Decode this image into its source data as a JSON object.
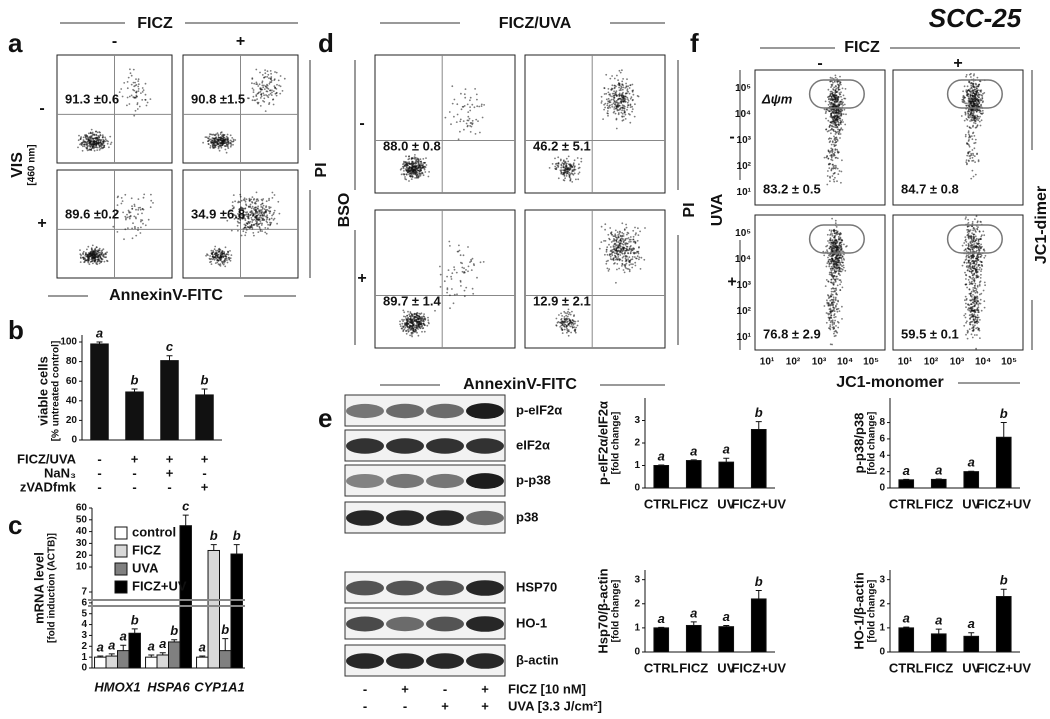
{
  "figure_title": "SCC-25",
  "panel_a": {
    "letter": "a",
    "column_header": "FICZ",
    "column_signs": [
      "-",
      "+"
    ],
    "row_header": "VIS",
    "row_subheader": "[460 nm]",
    "row_signs": [
      "-",
      "+"
    ],
    "x_label": "AnnexinV-FITC",
    "y_label": "PI",
    "quadrant_values": [
      "91.3 ±0.6",
      "90.8 ±1.5",
      "89.6 ±0.2",
      "34.9 ±6.8"
    ]
  },
  "panel_d": {
    "letter": "d",
    "column_header": "FICZ/UVA",
    "column_signs": [
      "-",
      "+"
    ],
    "row_header": "BSO",
    "row_signs": [
      "-",
      "+"
    ],
    "x_label": "AnnexinV-FITC",
    "y_label": "PI",
    "quadrant_values": [
      "88.0 ± 0.8",
      "46.2 ± 5.1",
      "89.7 ± 1.4",
      "12.9 ± 2.1"
    ]
  },
  "panel_f": {
    "letter": "f",
    "column_header": "FICZ",
    "column_signs": [
      "-",
      "+"
    ],
    "row_header": "UVA",
    "row_signs": [
      "-",
      "+"
    ],
    "x_label": "JC1-monomer",
    "y_label": "JC1-dimer",
    "gate_label": "Δψm",
    "axis_ticks": [
      "10¹",
      "10²",
      "10³",
      "10⁴",
      "10⁵"
    ],
    "gate_values": [
      "83.2 ± 0.5",
      "84.7 ± 0.8",
      "76.8 ± 2.9",
      "59.5 ± 0.1"
    ]
  },
  "panel_e": {
    "letter": "e",
    "blot_labels": [
      "p-eIF2α",
      "eIF2α",
      "p-p38",
      "p38",
      "HSP70",
      "HO-1",
      "β-actin"
    ],
    "treatments": [
      {
        "name": "FICZ  [10 nM]",
        "signs": [
          "-",
          "+",
          "-",
          "+"
        ]
      },
      {
        "name": "UVA  [3.3 J/cm²]",
        "signs": [
          "-",
          "-",
          "+",
          "+"
        ]
      }
    ]
  },
  "chart_data": [
    {
      "type": "bar",
      "panel": "b",
      "y_label": "viable cells",
      "y_sublabel": "[% untreated control]",
      "values": [
        98,
        49,
        81,
        46
      ],
      "errors": [
        2,
        3,
        5,
        6
      ],
      "annotations": [
        "a",
        "b",
        "c",
        "b"
      ],
      "color": "#111111",
      "ylim": [
        0,
        100
      ],
      "yticks": [
        0,
        20,
        40,
        60,
        80,
        100
      ],
      "conditions": [
        {
          "name": "FICZ/UVA",
          "signs": [
            "-",
            "+",
            "+",
            "+"
          ]
        },
        {
          "name": "NaN₃",
          "signs": [
            "-",
            "-",
            "+",
            "-"
          ]
        },
        {
          "name": "zVADfmk",
          "signs": [
            "-",
            "-",
            "-",
            "+"
          ]
        }
      ]
    },
    {
      "type": "bar",
      "panel": "c",
      "y_label": "mRNA level",
      "y_sublabel": "[fold induction (ACTB)]",
      "categories": [
        "HMOX1",
        "HSPA6",
        "CYP1A1"
      ],
      "series": [
        {
          "name": "control",
          "color": "#ffffff",
          "values": [
            1.0,
            1.0,
            1.0
          ],
          "errors": [
            0.1,
            0.2,
            0.1
          ],
          "annotations": [
            "a",
            "a",
            "a"
          ]
        },
        {
          "name": "FICZ",
          "color": "#d9d9d9",
          "values": [
            1.1,
            1.2,
            24
          ],
          "errors": [
            0.2,
            0.2,
            5
          ],
          "annotations": [
            "a",
            "a",
            "b"
          ]
        },
        {
          "name": "UVA",
          "color": "#808080",
          "values": [
            1.6,
            2.4,
            1.6
          ],
          "errors": [
            0.5,
            0.2,
            1.1
          ],
          "annotations": [
            "a",
            "b",
            "b"
          ]
        },
        {
          "name": "FICZ+UV",
          "color": "#000000",
          "values": [
            3.2,
            45,
            21
          ],
          "errors": [
            0.4,
            9,
            8
          ],
          "annotations": [
            "b",
            "c",
            "b"
          ]
        }
      ],
      "ylim": [
        0,
        7
      ],
      "yticks": [
        0,
        1,
        2,
        3,
        4,
        5,
        6,
        7
      ],
      "ylim_upper": [
        10,
        60
      ],
      "yticks_upper": [
        10,
        20,
        30,
        40,
        50,
        60
      ],
      "axis_break": true
    },
    {
      "type": "bar",
      "y_label": "p-eIF2α/eIF2α",
      "y_sublabel": "[fold change]",
      "categories": [
        "CTRL",
        "FICZ",
        "UV",
        "FICZ+UV"
      ],
      "values": [
        1.0,
        1.22,
        1.15,
        2.6
      ],
      "errors": [
        0.02,
        0.03,
        0.17,
        0.35
      ],
      "annotations": [
        "a",
        "a",
        "a",
        "b"
      ],
      "color": "#000000",
      "ylim": [
        0,
        4
      ],
      "yticks": [
        0,
        1,
        2,
        3
      ]
    },
    {
      "type": "bar",
      "y_label": "p-p38/p38",
      "y_sublabel": "[fold change]",
      "categories": [
        "CTRL",
        "FICZ",
        "UV",
        "FICZ+UV"
      ],
      "values": [
        1.0,
        1.05,
        2.0,
        6.2
      ],
      "errors": [
        0.05,
        0.05,
        0.05,
        1.8
      ],
      "annotations": [
        "a",
        "a",
        "a",
        "b"
      ],
      "color": "#000000",
      "ylim": [
        0,
        11
      ],
      "yticks": [
        0,
        2,
        4,
        6,
        8
      ]
    },
    {
      "type": "bar",
      "y_label": "Hsp70/β-actin",
      "y_sublabel": "[fold change]",
      "categories": [
        "CTRL",
        "FICZ",
        "UV",
        "FICZ+UV"
      ],
      "values": [
        1.0,
        1.1,
        1.05,
        2.2
      ],
      "errors": [
        0.02,
        0.15,
        0.05,
        0.35
      ],
      "annotations": [
        "a",
        "a",
        "a",
        "b"
      ],
      "color": "#000000",
      "ylim": [
        0,
        3.4
      ],
      "yticks": [
        0,
        1,
        2,
        3
      ]
    },
    {
      "type": "bar",
      "y_label": "HO-1/β-actin",
      "y_sublabel": "[fold change]",
      "categories": [
        "CTRL",
        "FICZ",
        "UV",
        "FICZ+UV"
      ],
      "values": [
        1.0,
        0.75,
        0.65,
        2.3
      ],
      "errors": [
        0.03,
        0.2,
        0.15,
        0.3
      ],
      "annotations": [
        "a",
        "a",
        "a",
        "b"
      ],
      "color": "#000000",
      "ylim": [
        0,
        3.4
      ],
      "yticks": [
        0,
        1,
        2,
        3
      ]
    }
  ]
}
